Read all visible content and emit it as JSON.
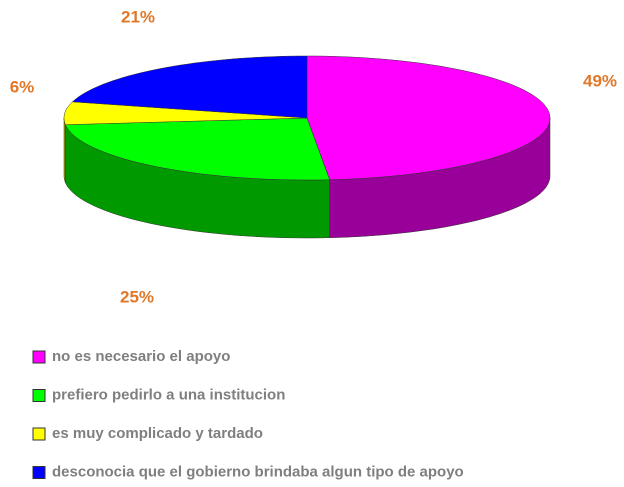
{
  "chart_data": {
    "type": "pie",
    "categories": [
      "no es necesario el apoyo",
      "prefiero pedirlo a una institucion",
      "es muy complicado y tardado",
      "desconocia que el gobierno brindaba algun tipo de apoyo"
    ],
    "values": [
      49,
      25,
      6,
      21
    ],
    "value_labels": [
      "49%",
      "25%",
      "6%",
      "21%"
    ],
    "colors": [
      "#ff00ff",
      "#00ff00",
      "#ffff00",
      "#0000ff"
    ],
    "legend": "bottom"
  }
}
